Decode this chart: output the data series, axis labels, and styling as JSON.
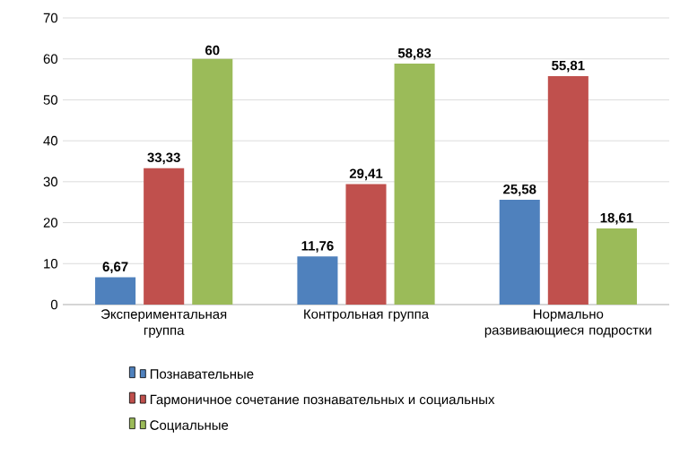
{
  "chart_data": {
    "type": "bar",
    "categories": [
      "Экспериментальная группа",
      "Контрольная группа",
      "Нормально развивающиеся подростки"
    ],
    "series": [
      {
        "name": "Познавательные",
        "color": "#4f81bd",
        "values": [
          6.67,
          11.76,
          25.58
        ],
        "value_labels": [
          "6,67",
          "11,76",
          "25,58"
        ]
      },
      {
        "name": "Гармоничное сочетание познавательных и социальных",
        "color": "#c0504d",
        "values": [
          33.33,
          29.41,
          55.81
        ],
        "value_labels": [
          "33,33",
          "29,41",
          "55,81"
        ]
      },
      {
        "name": "Социальные",
        "color": "#9bbb59",
        "values": [
          60,
          58.83,
          18.61
        ],
        "value_labels": [
          "60",
          "58,83",
          "18,61"
        ]
      }
    ],
    "ylim": [
      0,
      70
    ],
    "yticks": [
      0,
      10,
      20,
      30,
      40,
      50,
      60,
      70
    ],
    "grid": "y",
    "legend": "bottom"
  }
}
